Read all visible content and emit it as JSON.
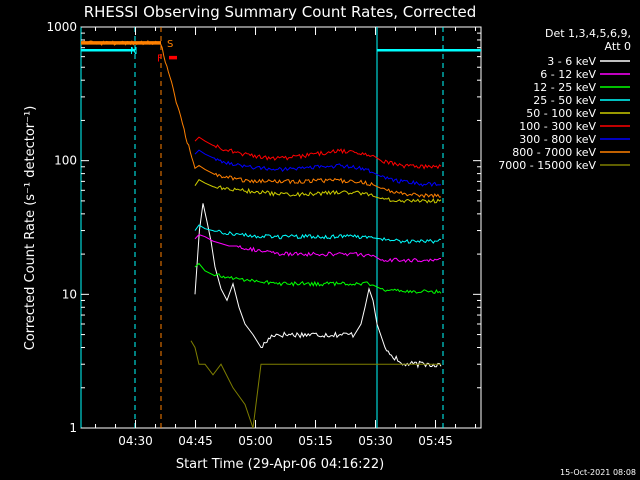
{
  "chart_data": {
    "type": "line",
    "title": "RHESSI Observing Summary Count Rates, Corrected",
    "xlabel": "Start Time (29-Apr-06 04:16:22)",
    "ylabel": "Corrected Count Rate (s⁻¹ detector⁻¹)",
    "yscale": "log",
    "ylim": [
      1,
      1000
    ],
    "xlim_min_after_start": [
      0,
      100
    ],
    "x_ticks": [
      "04:30",
      "04:45",
      "05:00",
      "05:15",
      "05:30",
      "05:45"
    ],
    "x_tick_minutes": [
      13.63,
      28.63,
      43.63,
      58.63,
      73.63,
      88.63
    ],
    "y_ticks": [
      "1",
      "10",
      "100",
      "1000"
    ],
    "y_tick_values": [
      1,
      10,
      100,
      1000
    ],
    "legend_header": [
      "Det 1,3,4,5,6,9,",
      "Att 0"
    ],
    "legend_placement": "right",
    "footer_timestamp": "15-Oct-2021 08:08",
    "series": [
      {
        "name": "3 - 6 keV",
        "color": "#ffffff",
        "x": [
          28.5,
          29.6,
          30.5,
          31.5,
          32.5,
          33.5,
          35,
          36.5,
          38,
          39.5,
          41,
          43,
          45,
          48,
          52,
          56,
          60,
          64,
          68,
          70,
          71,
          72,
          73,
          74,
          76,
          80,
          85,
          90
        ],
        "y": [
          10,
          30,
          48,
          35,
          25,
          16,
          11,
          9,
          12,
          8,
          6,
          5,
          4,
          5,
          5,
          5,
          5,
          5,
          5,
          6,
          8,
          11,
          9,
          6,
          4,
          3,
          3,
          3
        ]
      },
      {
        "name": "6 - 12 keV",
        "color": "#ff00ff",
        "x": [
          28.5,
          29.5,
          31,
          33,
          35,
          37,
          39,
          42,
          45,
          50,
          55,
          60,
          65,
          70,
          73,
          75,
          80,
          85,
          90
        ],
        "y": [
          26,
          28,
          27,
          25,
          24,
          23,
          23,
          22,
          21,
          20,
          20,
          20,
          20,
          20,
          19,
          18,
          18,
          18,
          18
        ]
      },
      {
        "name": "12 - 25 keV",
        "color": "#00ff00",
        "x": [
          28.5,
          29.5,
          31,
          33,
          36,
          40,
          45,
          50,
          55,
          60,
          65,
          70,
          73,
          75,
          80,
          85,
          90
        ],
        "y": [
          16,
          17,
          15,
          14,
          13.5,
          13,
          12.5,
          12,
          12,
          12,
          12,
          12,
          12,
          11,
          10.5,
          10.5,
          10.5
        ]
      },
      {
        "name": "25 - 50 keV",
        "color": "#00ffff",
        "x": [
          28.5,
          29.5,
          31,
          33,
          36,
          40,
          45,
          50,
          55,
          60,
          65,
          70,
          73,
          75,
          80,
          85,
          90
        ],
        "y": [
          30,
          33,
          31,
          30,
          29,
          28,
          27,
          27,
          27,
          27,
          27,
          27,
          26,
          26,
          25,
          25,
          25
        ]
      },
      {
        "name": "50 - 100 keV",
        "color": "#cccc00",
        "x": [
          28.5,
          29.5,
          31,
          33,
          36,
          40,
          45,
          50,
          55,
          60,
          65,
          70,
          73,
          75,
          80,
          85,
          90
        ],
        "y": [
          65,
          72,
          68,
          64,
          62,
          60,
          58,
          56,
          56,
          57,
          58,
          57,
          55,
          52,
          50,
          50,
          50
        ]
      },
      {
        "name": "100 - 300 keV",
        "color": "#ff0000",
        "x": [
          28.5,
          29.5,
          31,
          33,
          36,
          40,
          45,
          50,
          55,
          60,
          65,
          70,
          73,
          75,
          80,
          85,
          90
        ],
        "y": [
          140,
          150,
          140,
          130,
          122,
          113,
          106,
          104,
          108,
          114,
          118,
          114,
          107,
          100,
          92,
          90,
          90
        ]
      },
      {
        "name": "300 - 800 keV",
        "color": "#0000ff",
        "x": [
          28.5,
          29.5,
          31,
          33,
          36,
          40,
          45,
          50,
          55,
          60,
          65,
          70,
          73,
          75,
          80,
          85,
          90
        ],
        "y": [
          112,
          120,
          112,
          105,
          98,
          92,
          88,
          86,
          88,
          90,
          92,
          88,
          82,
          76,
          70,
          67,
          66
        ]
      },
      {
        "name": "800 - 7000 keV",
        "color": "#ff8000",
        "x": [
          0,
          19.9,
          28.5,
          29.5,
          31,
          33,
          36,
          40,
          45,
          50,
          55,
          60,
          65,
          70,
          73,
          75,
          80,
          85,
          90
        ],
        "y": [
          760,
          760,
          85,
          92,
          86,
          80,
          76,
          72,
          70,
          70,
          70,
          71,
          71,
          69,
          66,
          62,
          57,
          55,
          55
        ]
      },
      {
        "name": "7000 - 15000 keV",
        "color": "#7f7f00",
        "x": [
          27.5,
          28.5,
          29.5,
          31,
          33,
          35,
          38,
          41,
          43,
          45,
          50,
          55,
          60,
          65,
          70,
          73,
          75,
          80,
          85,
          90
        ],
        "y": [
          4.5,
          4,
          3,
          3,
          2.5,
          3,
          2,
          1.5,
          1,
          3,
          3,
          3,
          3,
          3,
          3,
          3,
          3,
          3,
          3,
          3
        ]
      }
    ],
    "annotations": [
      {
        "label": "N",
        "kind": "night",
        "color": "#00ffff",
        "y": 670,
        "segments": [
          [
            0,
            13.5
          ],
          [
            74,
            100
          ]
        ]
      },
      {
        "label": "S",
        "kind": "saa",
        "color": "#ff8000",
        "y": 760,
        "segments": [
          [
            0,
            20
          ]
        ]
      },
      {
        "label": "F",
        "kind": "flare",
        "color": "#ff0000",
        "y": 590,
        "segments": [
          [
            22,
            24
          ]
        ]
      }
    ],
    "vertical_markers": [
      {
        "color": "#00ffff",
        "style": "solid",
        "x": 0
      },
      {
        "color": "#00ffff",
        "style": "dashed",
        "x": 13.5
      },
      {
        "color": "#ff8000",
        "style": "dashed",
        "x": 20
      },
      {
        "color": "#00ffff",
        "style": "solid",
        "x": 74
      },
      {
        "color": "#00ffff",
        "style": "dashed",
        "x": 90.5
      }
    ]
  }
}
